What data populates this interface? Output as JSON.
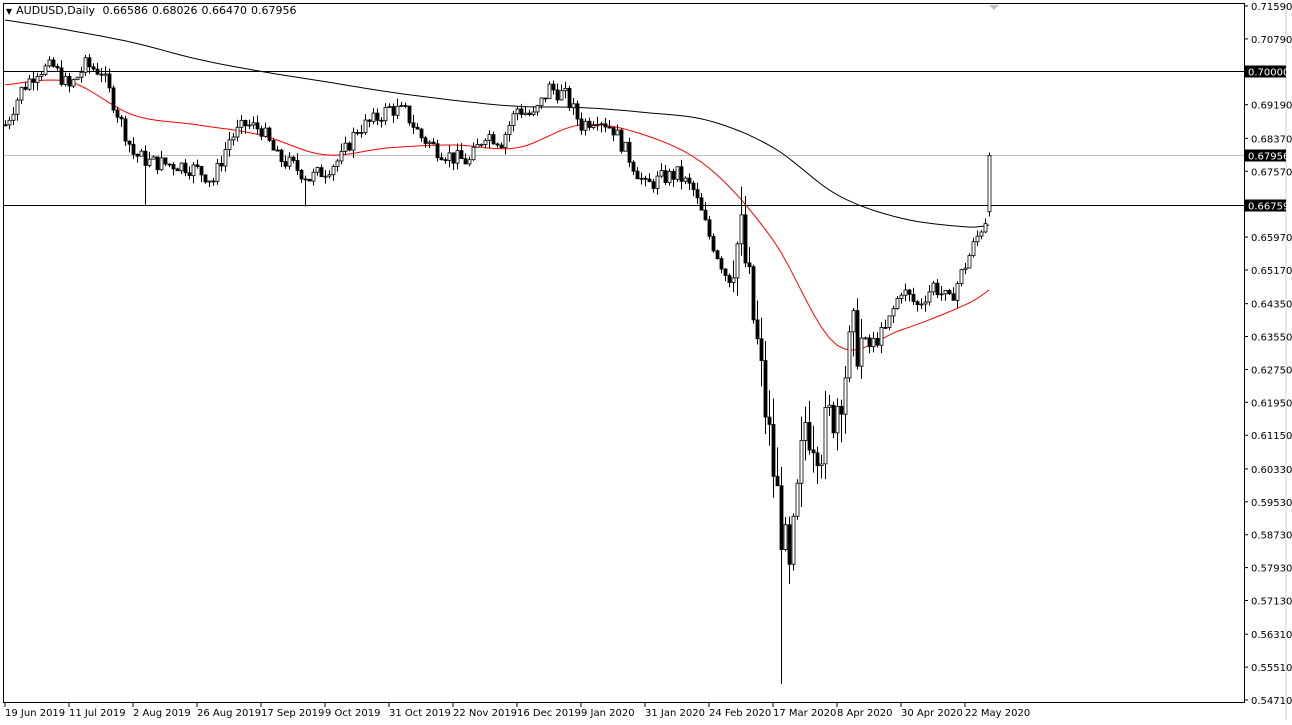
{
  "header": {
    "symbol_timeframe": "AUDUSD,Daily",
    "open": "0.66586",
    "high": "0.68026",
    "low": "0.66470",
    "close": "0.67956"
  },
  "colors": {
    "background": "#ffffff",
    "candles": "#000000",
    "bull_fill": "#ffffff",
    "bear_fill": "#000000",
    "ma_long": "#000000",
    "ma_short": "#ff0000",
    "bid_line": "#c0c0c0",
    "label_bg": "#000000",
    "label_text": "#ffffff"
  },
  "chart_data": {
    "type": "candlestick",
    "title": "AUDUSD,Daily",
    "ylim": [
      0.5471,
      0.7159
    ],
    "y_ticks": [
      "0.71590",
      "0.70790",
      "0.69190",
      "0.68370",
      "0.67570",
      "0.65970",
      "0.65170",
      "0.64350",
      "0.63550",
      "0.62750",
      "0.61950",
      "0.61150",
      "0.60330",
      "0.59530",
      "0.58730",
      "0.57930",
      "0.57130",
      "0.56310",
      "0.55510",
      "0.54710"
    ],
    "x_ticks": [
      "19 Jun 2019",
      "11 Jul 2019",
      "2 Aug 2019",
      "26 Aug 2019",
      "17 Sep 2019",
      "9 Oct 2019",
      "31 Oct 2019",
      "22 Nov 2019",
      "16 Dec 2019",
      "9 Jan 2020",
      "31 Jan 2020",
      "24 Feb 2020",
      "17 Mar 2020",
      "8 Apr 2020",
      "30 Apr 2020",
      "22 May 2020"
    ],
    "closes_every_4_sessions": [
      0.687,
      0.6955,
      0.7003,
      0.701,
      0.696,
      0.7015,
      0.7,
      0.69,
      0.68,
      0.678,
      0.6775,
      0.6772,
      0.676,
      0.6735,
      0.6835,
      0.687,
      0.686,
      0.679,
      0.677,
      0.674,
      0.676,
      0.679,
      0.686,
      0.688,
      0.691,
      0.69,
      0.684,
      0.681,
      0.679,
      0.678,
      0.685,
      0.683,
      0.691,
      0.689,
      0.696,
      0.694,
      0.687,
      0.689,
      0.686,
      0.679,
      0.672,
      0.674,
      0.675,
      0.671,
      0.66,
      0.651,
      0.6602,
      0.633,
      0.603,
      0.576,
      0.615,
      0.61,
      0.62,
      0.635,
      0.633,
      0.637,
      0.647,
      0.643,
      0.648,
      0.644,
      0.653,
      0.662
    ],
    "last_candle": {
      "open": 0.66586,
      "high": 0.68026,
      "low": 0.6647,
      "close": 0.67956
    },
    "notable_lows": [
      {
        "date": "19 Mar 2020",
        "low": 0.551
      },
      {
        "date": "1 Aug 2019",
        "low": 0.6676
      },
      {
        "date": "2 Oct 2019",
        "low": 0.6671
      }
    ],
    "moving_averages": [
      {
        "color": "#000000",
        "values_at_x_ticks": [
          0.7125,
          0.71,
          0.707,
          0.703,
          0.7,
          0.6975,
          0.695,
          0.693,
          0.6915,
          0.6912,
          0.69,
          0.688,
          0.6815,
          0.67,
          0.6643,
          0.6622
        ],
        "last": 0.6626
      },
      {
        "color": "#ff0000",
        "values_at_x_ticks": [
          0.6967,
          0.6975,
          0.6894,
          0.687,
          0.6845,
          0.6797,
          0.6814,
          0.6821,
          0.6814,
          0.687,
          0.6845,
          0.6765,
          0.659,
          0.6334,
          0.6371,
          0.6432
        ],
        "last": 0.6468
      }
    ],
    "horizontal_lines": [
      {
        "price": "0.70000",
        "color": "#000000"
      },
      {
        "price": "0.66759",
        "color": "#000000"
      },
      {
        "price": "0.67956",
        "color": "#c0c0c0"
      }
    ],
    "grid": false
  }
}
